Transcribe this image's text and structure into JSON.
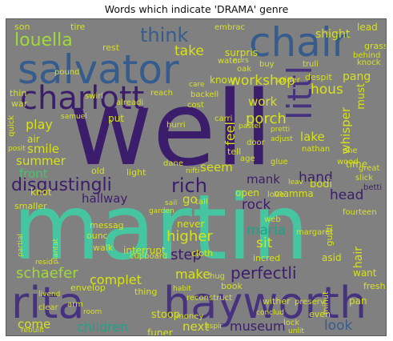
{
  "title": "Words which indicate 'DRAMA' genre",
  "palette": {
    "background": "#808080",
    "dark_purple": "#3b1d6b",
    "purple": "#46327e",
    "blue": "#365c8d",
    "teal_blue": "#277f8e",
    "teal": "#1fa187",
    "green": "#4ac16d",
    "light_green": "#a0da39",
    "yellow": "#d7e219"
  },
  "words": {
    "well": "well",
    "martin": "martin",
    "rita": "rita",
    "hayworth": "hayworth",
    "salvator": "salvator",
    "chair": "chair",
    "charlott": "charlott",
    "littl": "littl",
    "disgustingli": "disgustingli",
    "rich": "rich",
    "louella": "louella",
    "think": "think",
    "take": "take",
    "shight": "shight",
    "workshop": "workshop",
    "porch": "porch",
    "hous": "hous",
    "work": "work",
    "play": "play",
    "smile": "smile",
    "summer": "summer",
    "front": "front",
    "seem": "seem",
    "feel": "feel",
    "lake": "lake",
    "whisper": "whisper",
    "must": "must",
    "time": "time",
    "hand": "hand",
    "mank": "mank",
    "rock": "rock",
    "hallway": "hallway",
    "go": "go",
    "open": "open",
    "mamma": "mamma",
    "head": "head",
    "bodi": "bodi",
    "higher": "higher",
    "step": "step",
    "maria": "maria",
    "sit": "sit",
    "schaefer": "schaefer",
    "make": "make",
    "perfectli": "perfectli",
    "complet": "complet",
    "children": "children",
    "come": "come",
    "next": "next",
    "museum": "museum",
    "look": "look",
    "stoop": "stoop",
    "funer": "funer",
    "hair": "hair",
    "want": "want",
    "asid": "asid",
    "incred": "incred",
    "interrupt": "interrupt",
    "never": "never",
    "cloth": "cloth",
    "son": "son",
    "tire": "tire",
    "rest": "rest",
    "lead": "lead",
    "surpris": "surpris",
    "grass": "grass",
    "behind": "behind",
    "pang": "pang",
    "knock": "knock",
    "thin": "thin",
    "pound": "pound",
    "war": "war",
    "reach": "reach",
    "cost": "cost",
    "water": "water",
    "oak": "oak",
    "spider": "spider",
    "despit": "despit",
    "nathan": "nathan",
    "tell": "tell",
    "door": "door",
    "glue": "glue",
    "air": "air",
    "quick": "quick",
    "put": "put",
    "alreadi": "alreadi",
    "hurri": "hurri",
    "knot": "knot",
    "old": "old",
    "light": "light",
    "dane": "dane",
    "one": "one",
    "wood": "wood",
    "great": "great",
    "slick": "slick",
    "betti": "betti",
    "fourteen": "fourteen",
    "love": "love",
    "smaller": "smaller",
    "messag": "messag",
    "ounc": "ounc",
    "partial": "partial",
    "plantat": "plantat",
    "walk": "walk",
    "cupboard": "cupboard",
    "tall": "tall",
    "web": "web",
    "margaret": "margaret",
    "guilti": "guilti",
    "envelop": "envelop",
    "thing": "thing",
    "hug": "hug",
    "book": "book",
    "habit": "habit",
    "reconstruct": "reconstruct",
    "wither": "wither",
    "preserv": "preserv",
    "minut": "minut",
    "pan": "pan",
    "fresh": "fresh",
    "clear": "clear",
    "arm": "arm",
    "room": "room",
    "money": "money",
    "even": "even",
    "lock": "lock",
    "rebuilt": "rebuilt",
    "livend": "livend",
    "resid": "resid",
    "care": "care",
    "backell": "backell",
    "carri": "carri",
    "sail": "sail",
    "aspir": "aspir",
    "pretti": "pretti",
    "adjust": "adjust",
    "nurs": "nurs",
    "embrac": "embrac",
    "buy": "buy",
    "truli": "truli",
    "know": "know",
    "swirl": "swirl",
    "samuel": "samuel",
    "posit": "posit",
    "pastel": "pastel",
    "age": "age",
    "garden": "garden",
    "nifti": "nifti",
    "leav": "leav",
    "conclud": "conclud",
    "unlit": "unlit"
  }
}
